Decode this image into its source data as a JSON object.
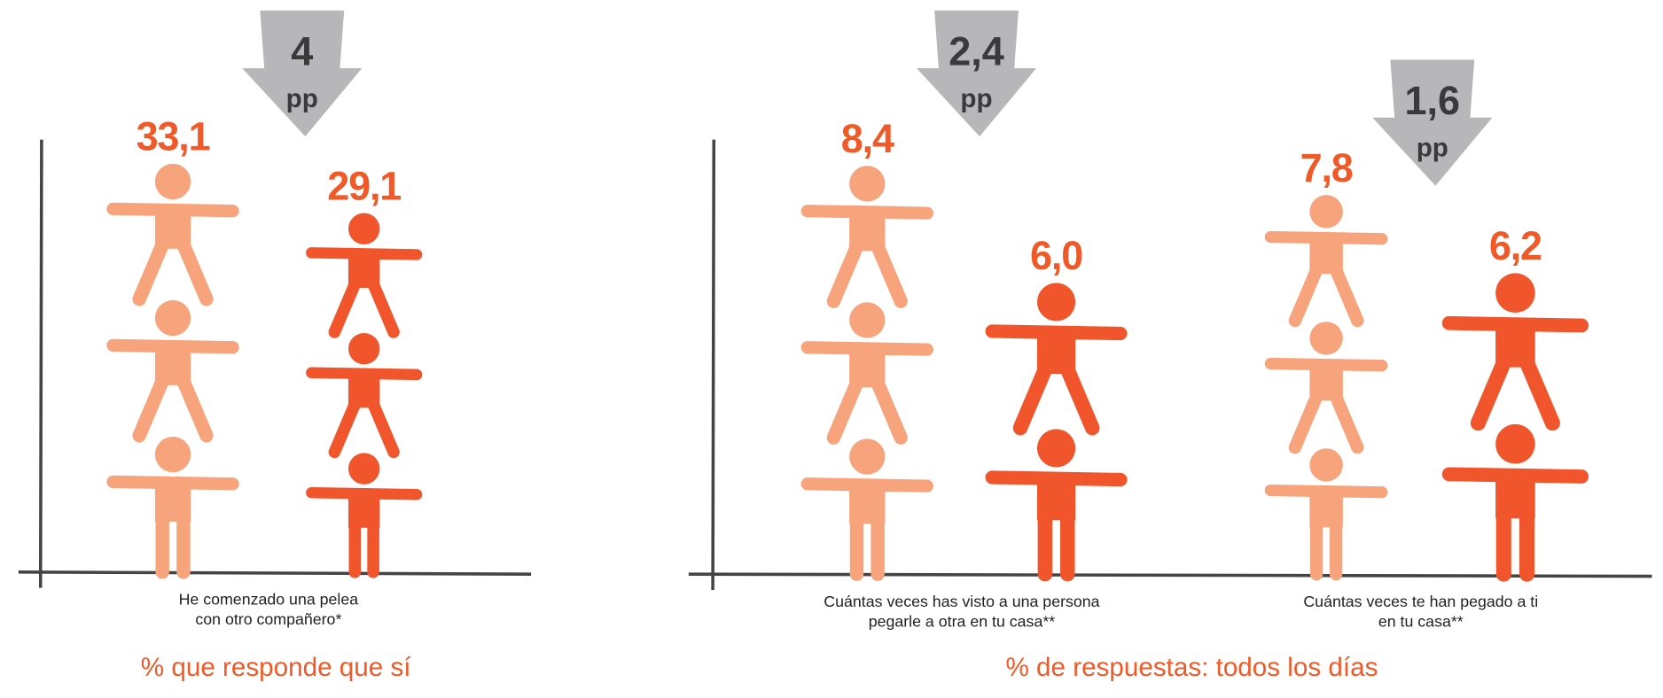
{
  "chart_data": [
    {
      "type": "pictogram",
      "categories": [
        "He comenzado una pelea\ncon otro compañero*"
      ],
      "series": [
        {
          "color": "#f7a37b",
          "values": [
            33.1
          ],
          "value_labels": [
            "33,1"
          ]
        },
        {
          "color": "#f0552b",
          "values": [
            29.1
          ],
          "value_labels": [
            "29,1"
          ]
        }
      ],
      "annotations": [
        {
          "text": "4",
          "unit": "pp"
        }
      ],
      "subtitle": "% que responde que sí"
    },
    {
      "type": "pictogram",
      "categories": [
        "Cuántas veces has visto  a una persona\npegarle a otra en tu casa**",
        "Cuántas veces te han pegado a ti\nen tu casa**"
      ],
      "series": [
        {
          "color": "#f7a37b",
          "values": [
            8.4,
            7.8
          ],
          "value_labels": [
            "8,4",
            "7,8"
          ]
        },
        {
          "color": "#f0552b",
          "values": [
            6.0,
            6.2
          ],
          "value_labels": [
            "6,0",
            "6,2"
          ]
        }
      ],
      "annotations": [
        {
          "text": "2,4",
          "unit": "pp"
        },
        {
          "text": "1,6",
          "unit": "pp"
        }
      ],
      "subtitle": "% de respuestas: todos los días"
    }
  ]
}
